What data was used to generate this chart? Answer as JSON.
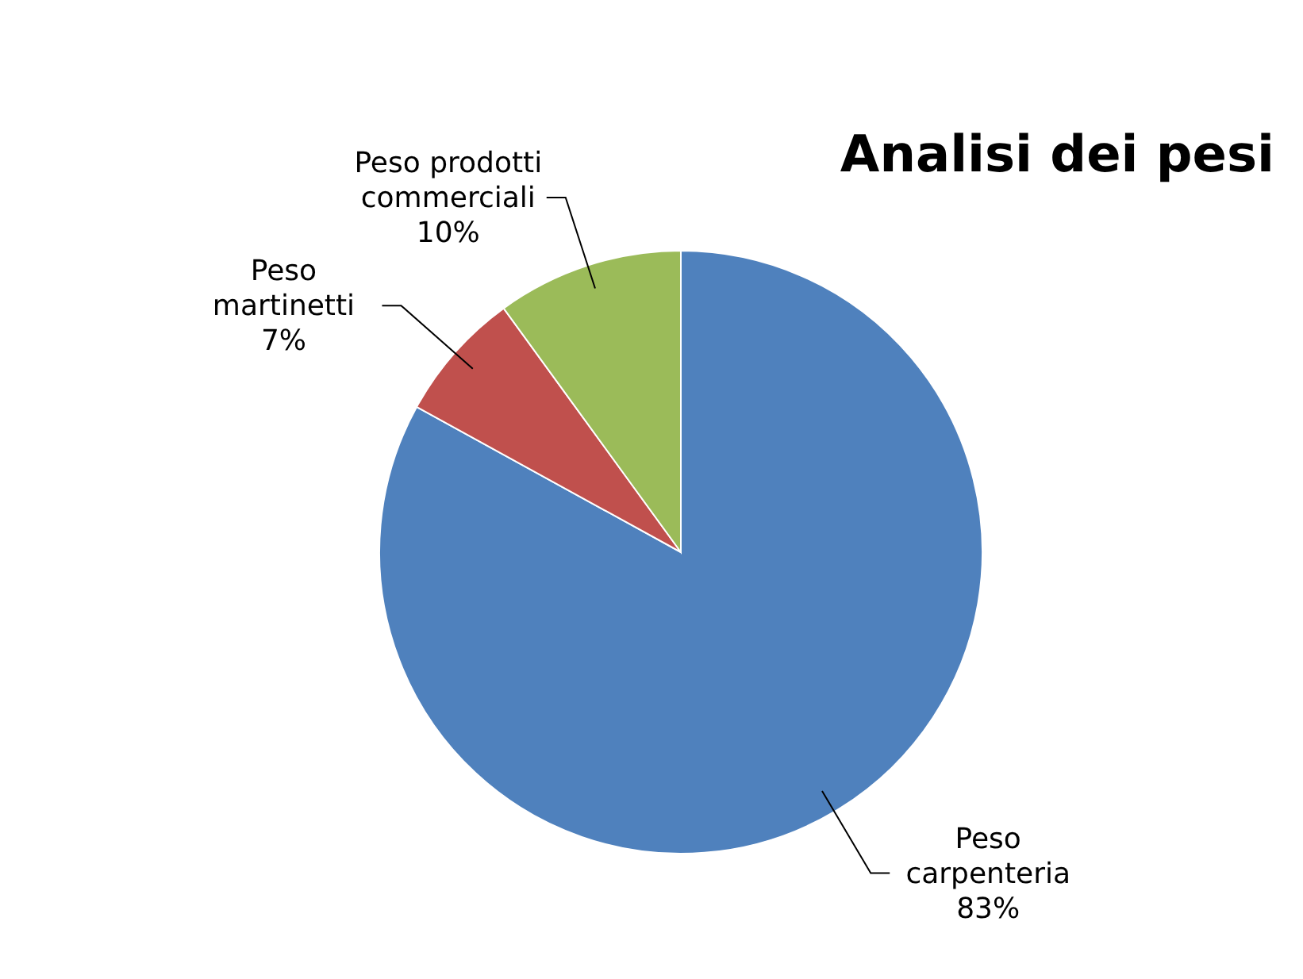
{
  "chart_data": {
    "type": "pie",
    "title": "Analisi dei pesi",
    "categories": [
      "Peso carpenteria",
      "Peso martinetti",
      "Peso prodotti commerciali"
    ],
    "values": [
      83,
      7,
      10
    ],
    "colors": [
      "#4f81bd",
      "#c0504d",
      "#9bbb59"
    ],
    "value_labels": [
      "83%",
      "7%",
      "10%"
    ]
  }
}
